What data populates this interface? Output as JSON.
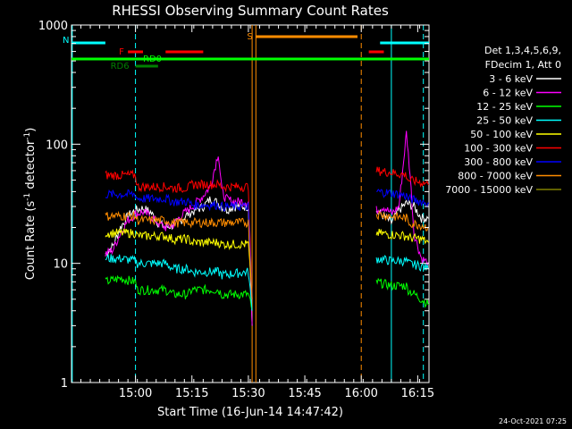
{
  "chart_data": {
    "type": "line",
    "title": "RHESSI Observing Summary Count Rates",
    "xlabel": "Start Time (16-Jun-14 14:47:42)",
    "ylabel_main": "Count Rate (s",
    "ylabel_sup1": "-1",
    "ylabel_mid": " detector",
    "ylabel_sup2": "-1",
    "ylabel_end": ")",
    "x_range_min": [
      -5,
      90
    ],
    "y_range": [
      1,
      1000
    ],
    "y_scale": "log",
    "x_ticks": [
      {
        "min": 12,
        "label": "15:00"
      },
      {
        "min": 27,
        "label": "15:15"
      },
      {
        "min": 42,
        "label": "15:30"
      },
      {
        "min": 57,
        "label": "15:45"
      },
      {
        "min": 72,
        "label": "16:00"
      },
      {
        "min": 87,
        "label": "16:15"
      }
    ],
    "y_ticks": [
      {
        "val": 1,
        "label": "1"
      },
      {
        "val": 10,
        "label": "10"
      },
      {
        "val": 100,
        "label": "100"
      },
      {
        "val": 1000,
        "label": "1000"
      }
    ],
    "legend": {
      "header1": "Det 1,3,4,5,6,9,",
      "header2": "FDecim 1, Att 0",
      "position": "right"
    },
    "series": [
      {
        "name": "3 - 6 keV",
        "color": "#ffffff",
        "segments": [
          [
            [
              4,
              12
            ],
            [
              6,
              14
            ],
            [
              8,
              20
            ],
            [
              10,
              25
            ],
            [
              12,
              28
            ],
            [
              14,
              29
            ],
            [
              16,
              27
            ],
            [
              18,
              22
            ],
            [
              20,
              20
            ],
            [
              22,
              21
            ],
            [
              24,
              23
            ],
            [
              26,
              26
            ],
            [
              28,
              28
            ],
            [
              30,
              30
            ],
            [
              32,
              35
            ],
            [
              34,
              32
            ],
            [
              36,
              28
            ],
            [
              38,
              30
            ],
            [
              40,
              30
            ],
            [
              42,
              30
            ],
            [
              43,
              3
            ]
          ],
          [
            [
              76,
              27
            ],
            [
              78,
              25
            ],
            [
              80,
              22
            ],
            [
              82,
              28
            ],
            [
              84,
              32
            ],
            [
              86,
              30
            ],
            [
              88,
              24
            ],
            [
              90,
              24
            ]
          ]
        ]
      },
      {
        "name": "6 - 12 keV",
        "color": "#ff00ff",
        "segments": [
          [
            [
              4,
              12
            ],
            [
              6,
              13
            ],
            [
              8,
              18
            ],
            [
              10,
              23
            ],
            [
              12,
              26
            ],
            [
              14,
              27
            ],
            [
              16,
              25
            ],
            [
              18,
              22
            ],
            [
              20,
              20
            ],
            [
              22,
              21
            ],
            [
              24,
              25
            ],
            [
              26,
              28
            ],
            [
              28,
              32
            ],
            [
              30,
              37
            ],
            [
              32,
              45
            ],
            [
              34,
              85
            ],
            [
              35,
              40
            ],
            [
              36,
              35
            ],
            [
              38,
              33
            ],
            [
              40,
              33
            ],
            [
              42,
              33
            ],
            [
              43,
              3
            ]
          ],
          [
            [
              76,
              28
            ],
            [
              78,
              30
            ],
            [
              80,
              26
            ],
            [
              82,
              30
            ],
            [
              83,
              60
            ],
            [
              84,
              125
            ],
            [
              85,
              55
            ],
            [
              86,
              18
            ],
            [
              88,
              11
            ],
            [
              90,
              10
            ]
          ]
        ]
      },
      {
        "name": "12 - 25 keV",
        "color": "#00ff00",
        "segments": [
          [
            [
              4,
              7
            ],
            [
              8,
              7.5
            ],
            [
              12,
              7
            ],
            [
              12.5,
              6
            ],
            [
              20,
              6
            ],
            [
              22,
              5.5
            ],
            [
              26,
              5.5
            ],
            [
              27,
              6
            ],
            [
              34,
              6
            ],
            [
              35,
              5.5
            ],
            [
              42,
              5.5
            ],
            [
              43,
              4
            ]
          ],
          [
            [
              76,
              7
            ],
            [
              80,
              6.5
            ],
            [
              84,
              6.5
            ],
            [
              84.5,
              6
            ],
            [
              88,
              5
            ],
            [
              90,
              4.5
            ]
          ]
        ]
      },
      {
        "name": "25 - 50 keV",
        "color": "#00ffff",
        "segments": [
          [
            [
              4,
              11
            ],
            [
              8,
              11
            ],
            [
              12,
              10.5
            ],
            [
              12.5,
              10
            ],
            [
              20,
              10
            ],
            [
              22,
              9
            ],
            [
              26,
              9
            ],
            [
              27,
              8.5
            ],
            [
              34,
              8.5
            ],
            [
              35,
              8
            ],
            [
              42,
              8.5
            ],
            [
              43,
              4
            ]
          ],
          [
            [
              76,
              11
            ],
            [
              80,
              10.5
            ],
            [
              84,
              10.5
            ],
            [
              84.5,
              10
            ],
            [
              88,
              9.5
            ],
            [
              90,
              9
            ]
          ]
        ]
      },
      {
        "name": "50 - 100 keV",
        "color": "#ffff00",
        "segments": [
          [
            [
              4,
              18
            ],
            [
              8,
              18
            ],
            [
              12,
              18
            ],
            [
              12.5,
              17
            ],
            [
              20,
              17
            ],
            [
              22,
              16
            ],
            [
              26,
              16
            ],
            [
              27,
              15
            ],
            [
              34,
              15
            ],
            [
              35,
              14.5
            ],
            [
              42,
              14.5
            ],
            [
              43,
              5
            ]
          ],
          [
            [
              76,
              18
            ],
            [
              80,
              17.5
            ],
            [
              84,
              17
            ],
            [
              84.5,
              16.5
            ],
            [
              88,
              16
            ],
            [
              90,
              15
            ]
          ]
        ]
      },
      {
        "name": "100 - 300 keV",
        "color": "#ff0000",
        "segments": [
          [
            [
              4,
              55
            ],
            [
              8,
              55
            ],
            [
              12,
              55
            ],
            [
              12.5,
              44
            ],
            [
              20,
              44
            ],
            [
              22,
              43
            ],
            [
              26,
              43
            ],
            [
              27,
              46
            ],
            [
              34,
              46
            ],
            [
              35,
              44
            ],
            [
              42,
              44
            ],
            [
              43,
              5
            ]
          ],
          [
            [
              76,
              60
            ],
            [
              80,
              58
            ],
            [
              84,
              55
            ],
            [
              84.5,
              50
            ],
            [
              88,
              48
            ],
            [
              90,
              46
            ]
          ]
        ]
      },
      {
        "name": "300 - 800 keV",
        "color": "#0000ff",
        "segments": [
          [
            [
              4,
              38
            ],
            [
              8,
              38
            ],
            [
              12,
              38
            ],
            [
              12.5,
              35
            ],
            [
              20,
              35
            ],
            [
              22,
              33
            ],
            [
              26,
              33
            ],
            [
              27,
              31
            ],
            [
              34,
              31
            ],
            [
              35,
              30
            ],
            [
              42,
              30
            ],
            [
              43,
              5
            ]
          ],
          [
            [
              76,
              40
            ],
            [
              80,
              39
            ],
            [
              84,
              37
            ],
            [
              84.5,
              35
            ],
            [
              88,
              33
            ],
            [
              90,
              32
            ]
          ]
        ]
      },
      {
        "name": "800 - 7000 keV",
        "color": "#ff8c00",
        "segments": [
          [
            [
              4,
              25
            ],
            [
              8,
              25
            ],
            [
              12,
              25
            ],
            [
              12.5,
              23
            ],
            [
              20,
              23
            ],
            [
              22,
              22
            ],
            [
              26,
              22
            ],
            [
              27,
              22
            ],
            [
              34,
              22
            ],
            [
              35,
              22
            ],
            [
              42,
              22
            ],
            [
              43,
              5
            ]
          ],
          [
            [
              76,
              26
            ],
            [
              80,
              25
            ],
            [
              84,
              24
            ],
            [
              84.5,
              22
            ],
            [
              88,
              21
            ],
            [
              90,
              20
            ]
          ]
        ]
      },
      {
        "name": "7000 - 15000 keV",
        "color": "#808000",
        "segments": []
      }
    ],
    "flag_bars": [
      {
        "label": "N",
        "color": "#00ffff",
        "level": 1,
        "spans": [
          [
            -5,
            4
          ],
          [
            77,
            90
          ]
        ]
      },
      {
        "label": "F",
        "color": "#ff0000",
        "level": 2,
        "spans": [
          [
            10,
            14
          ],
          [
            20,
            30
          ],
          [
            74,
            78
          ]
        ]
      },
      {
        "label": "RD0",
        "color": "#00ff00",
        "level": 3,
        "spans": [
          [
            -5,
            90
          ]
        ]
      },
      {
        "label": "RD6",
        "color": "#008000",
        "level": 4,
        "spans": [
          [
            12,
            18
          ]
        ]
      },
      {
        "label": "S",
        "color": "#ff8c00",
        "level": 0,
        "spans": [
          [
            44,
            71
          ]
        ]
      }
    ],
    "vlines": [
      {
        "min": -4.8,
        "color": "#00ffff",
        "dash": false
      },
      {
        "min": 12,
        "color": "#00ffff",
        "dash": true
      },
      {
        "min": 43,
        "color": "#ff8c00",
        "dash": false
      },
      {
        "min": 44,
        "color": "#ff8c00",
        "dash": false
      },
      {
        "min": 72,
        "color": "#ff8c00",
        "dash": true
      },
      {
        "min": 80,
        "color": "#00ffff",
        "dash": false
      },
      {
        "min": 88.5,
        "color": "#00ffff",
        "dash": true
      }
    ]
  },
  "footer": {
    "timestamp": "24-Oct-2021 07:25"
  }
}
